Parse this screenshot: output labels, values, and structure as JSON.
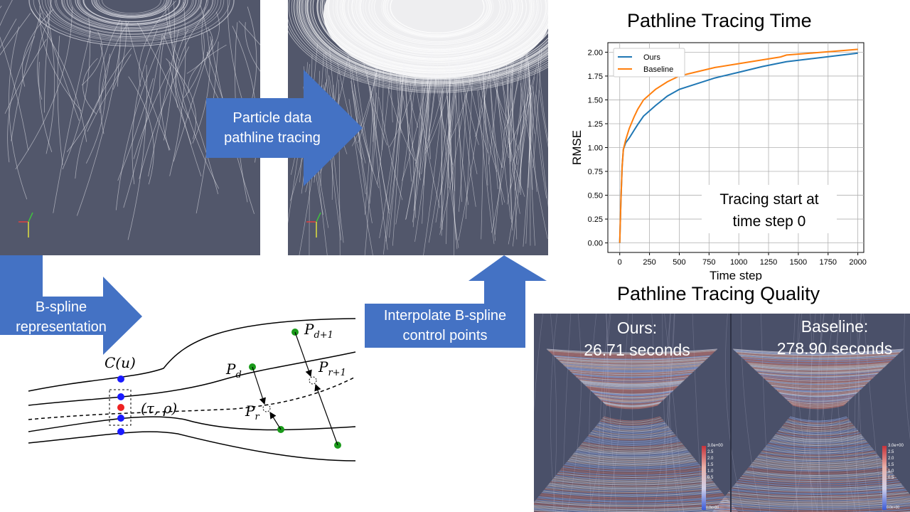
{
  "panels": {
    "raw_render": {
      "name": "particle-data-render"
    },
    "traced_render": {
      "name": "traced-pathlines-render"
    }
  },
  "arrows": {
    "tracing": {
      "label_line1": "Particle data",
      "label_line2": "pathline tracing",
      "color": "#4472C4"
    },
    "bspline": {
      "label_line1": "B-spline",
      "label_line2": "representation",
      "color": "#4472C4"
    },
    "interp": {
      "label_line1": "Interpolate B-spline",
      "label_line2": "control points",
      "color": "#4472C4"
    }
  },
  "diagram": {
    "labels": {
      "c_u": "C(u)",
      "tau_rho": "(τ, ρ)",
      "p_d": "P",
      "p_d_sub": "d",
      "p_d1": "P",
      "p_d1_sub": "d+1",
      "p_r": "P",
      "p_r_sub": "r",
      "p_r1": "P",
      "p_r1_sub": "r+1"
    },
    "colors": {
      "blue_point": "#1a1aff",
      "red_point": "#ee2222",
      "green_point": "#1a9a1a"
    }
  },
  "chart_title": "Pathline Tracing Time",
  "quality_title": "Pathline Tracing Quality",
  "quality": {
    "ours_label": "Ours:",
    "ours_time": "26.71 seconds",
    "baseline_label": "Baseline:",
    "baseline_time": "278.90 seconds",
    "colorbar_top": "3.0e+00",
    "colorbar_mid1": "2.5",
    "colorbar_mid2": "2.0",
    "colorbar_mid3": "1.5",
    "colorbar_mid4": "1.0",
    "colorbar_mid5": "0.5",
    "colorbar_bottom": "0.0e+00"
  },
  "chart_data": {
    "type": "line",
    "xlabel": "Time step",
    "ylabel": "RMSE",
    "xlim": [
      -100,
      2050
    ],
    "ylim": [
      -0.1,
      2.1
    ],
    "xticks": [
      0,
      250,
      500,
      750,
      1000,
      1250,
      1500,
      1750,
      2000
    ],
    "yticks": [
      0.0,
      0.25,
      0.5,
      0.75,
      1.0,
      1.25,
      1.5,
      1.75,
      2.0
    ],
    "grid": true,
    "legend_position": "top-left",
    "annotation_line1": "Tracing start at",
    "annotation_line2": "time step 0",
    "series": [
      {
        "name": "Ours",
        "color": "#1f77b4",
        "x": [
          0,
          10,
          20,
          30,
          50,
          80,
          120,
          150,
          200,
          300,
          400,
          500,
          600,
          800,
          1000,
          1200,
          1400,
          1600,
          1800,
          2000
        ],
        "y": [
          0.0,
          0.45,
          0.8,
          0.98,
          1.05,
          1.1,
          1.18,
          1.24,
          1.33,
          1.44,
          1.54,
          1.61,
          1.65,
          1.73,
          1.79,
          1.85,
          1.9,
          1.93,
          1.96,
          1.99
        ]
      },
      {
        "name": "Baseline",
        "color": "#ff7f0e",
        "x": [
          0,
          10,
          20,
          30,
          50,
          80,
          120,
          150,
          200,
          300,
          400,
          500,
          600,
          800,
          1000,
          1200,
          1350,
          1400,
          1600,
          1800,
          2000
        ],
        "y": [
          0.0,
          0.45,
          0.8,
          0.98,
          1.08,
          1.2,
          1.32,
          1.4,
          1.5,
          1.61,
          1.69,
          1.75,
          1.78,
          1.84,
          1.88,
          1.92,
          1.95,
          1.97,
          1.99,
          2.01,
          2.03
        ]
      }
    ]
  }
}
